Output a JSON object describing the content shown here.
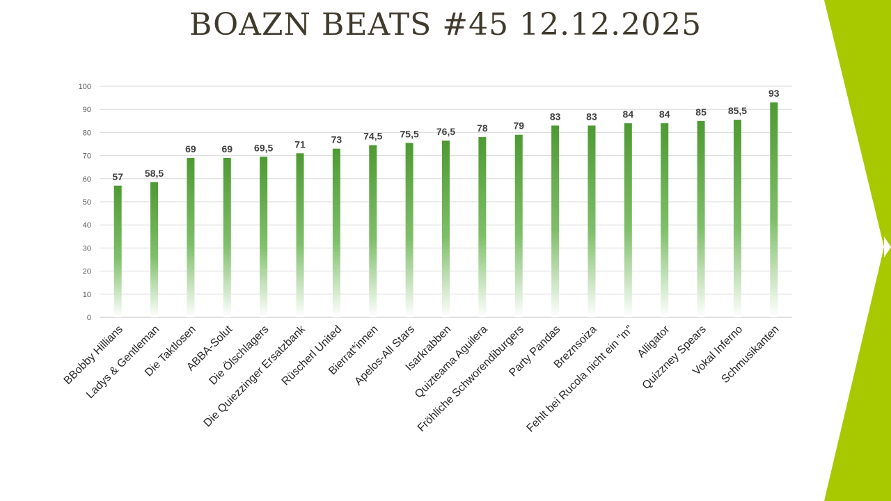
{
  "slide": {
    "title": "BOAZN BEATS #45 12.12.2025",
    "accent_color": "#a8c800"
  },
  "chart_data": {
    "type": "bar",
    "title": "",
    "xlabel": "",
    "ylabel": "",
    "ylim": [
      0,
      100
    ],
    "yticks": [
      0,
      10,
      20,
      30,
      40,
      50,
      60,
      70,
      80,
      90,
      100
    ],
    "grid": true,
    "bar_color": "#4e9a32",
    "categories": [
      "BBobby Hillians",
      "Ladys & Gentleman",
      "Die Taktlosen",
      "ABBA-Solut",
      "Die Ölschlagers",
      "Die Quiezzinger Ersatzbank",
      "Rüscherl United",
      "Bierrat*innen",
      "Apelos-All Stars",
      "Isarkrabben",
      "Quizteama Aguilera",
      "Fröhliche Schworendiburgers",
      "Party Pandas",
      "Breznsoiza",
      "Fehlt bei Rucola nicht ein \"m\"",
      "Alligator",
      "Quizzney Spears",
      "Vokal Inferno",
      "Schmusikanten"
    ],
    "values": [
      57,
      58.5,
      69,
      69,
      69.5,
      71,
      73,
      74.5,
      75.5,
      76.5,
      78,
      79,
      83,
      83,
      84,
      84,
      85,
      85.5,
      93
    ],
    "value_labels": [
      "57",
      "58,5",
      "69",
      "69",
      "69,5",
      "71",
      "73",
      "74,5",
      "75,5",
      "76,5",
      "78",
      "79",
      "83",
      "83",
      "84",
      "84",
      "85",
      "85,5",
      "93"
    ]
  }
}
